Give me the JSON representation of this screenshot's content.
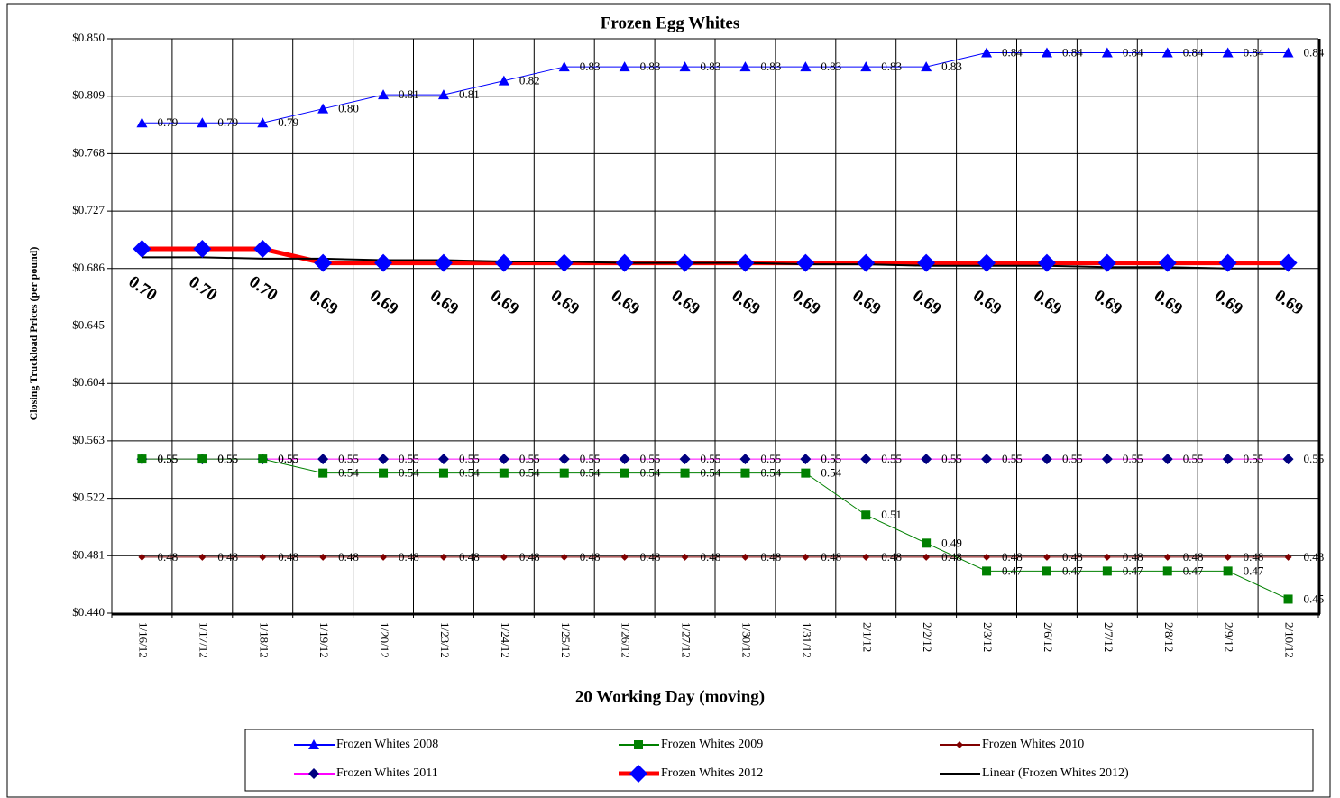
{
  "chart_data": {
    "type": "line",
    "title": "Frozen Egg Whites",
    "x_label": "20 Working Day (moving)",
    "y_label": "Closing Truckload Prices (per pound)",
    "categories": [
      "1/16/12",
      "1/17/12",
      "1/18/12",
      "1/19/12",
      "1/20/12",
      "1/23/12",
      "1/24/12",
      "1/25/12",
      "1/26/12",
      "1/27/12",
      "1/30/12",
      "1/31/12",
      "2/1/12",
      "2/2/12",
      "2/3/12",
      "2/6/12",
      "2/7/12",
      "2/8/12",
      "2/9/12",
      "2/10/12"
    ],
    "ylim": [
      0.44,
      0.85
    ],
    "yticks": [
      {
        "value": 0.44,
        "label": "$0.440"
      },
      {
        "value": 0.481,
        "label": "$0.481"
      },
      {
        "value": 0.522,
        "label": "$0.522"
      },
      {
        "value": 0.563,
        "label": "$0.563"
      },
      {
        "value": 0.604,
        "label": "$0.604"
      },
      {
        "value": 0.645,
        "label": "$0.645"
      },
      {
        "value": 0.686,
        "label": "$0.686"
      },
      {
        "value": 0.727,
        "label": "$0.727"
      },
      {
        "value": 0.768,
        "label": "$0.768"
      },
      {
        "value": 0.809,
        "label": "$0.809"
      },
      {
        "value": 0.85,
        "label": "$0.850"
      }
    ],
    "grid": true,
    "series": [
      {
        "name": "Frozen Whites 2008",
        "color": "#0000ff",
        "marker": "triangle",
        "marker_color": "#0000ff",
        "values": [
          0.79,
          0.79,
          0.79,
          0.8,
          0.81,
          0.81,
          0.82,
          0.83,
          0.83,
          0.83,
          0.83,
          0.83,
          0.83,
          0.83,
          0.84,
          0.84,
          0.84,
          0.84,
          0.84,
          0.84
        ],
        "value_labels": [
          "0.79",
          "0.79",
          "0.79",
          "0.80",
          "0.81",
          "0.81",
          "0.82",
          "0.83",
          "0.83",
          "0.83",
          "0.83",
          "0.83",
          "0.83",
          "0.83",
          "0.84",
          "0.84",
          "0.84",
          "0.84",
          "0.84",
          "0.84"
        ]
      },
      {
        "name": "Frozen Whites 2009",
        "color": "#008000",
        "marker": "square",
        "marker_color": "#008000",
        "values": [
          0.55,
          0.55,
          0.55,
          0.54,
          0.54,
          0.54,
          0.54,
          0.54,
          0.54,
          0.54,
          0.54,
          0.54,
          0.51,
          0.49,
          0.47,
          0.47,
          0.47,
          0.47,
          0.47,
          0.45
        ],
        "value_labels": [
          "0.55",
          "0.55",
          "0.55",
          "0.54",
          "0.54",
          "0.54",
          "0.54",
          "0.54",
          "0.54",
          "0.54",
          "0.54",
          "0.54",
          "0.51",
          "0.49",
          "0.47",
          "0.47",
          "0.47",
          "0.47",
          "0.47",
          "0.45"
        ]
      },
      {
        "name": "Frozen Whites 2010",
        "color": "#800000",
        "marker": "small-diamond",
        "marker_color": "#800000",
        "values": [
          0.48,
          0.48,
          0.48,
          0.48,
          0.48,
          0.48,
          0.48,
          0.48,
          0.48,
          0.48,
          0.48,
          0.48,
          0.48,
          0.48,
          0.48,
          0.48,
          0.48,
          0.48,
          0.48,
          0.48
        ],
        "value_labels": [
          "0.48",
          "0.48",
          "0.48",
          "0.48",
          "0.48",
          "0.48",
          "0.48",
          "0.48",
          "0.48",
          "0.48",
          "0.48",
          "0.48",
          "0.48",
          "0.48",
          "0.48",
          "0.48",
          "0.48",
          "0.48",
          "0.48",
          "0.48"
        ]
      },
      {
        "name": "Frozen Whites 2011",
        "color": "#ff00ff",
        "marker": "diamond",
        "marker_color": "#000080",
        "values": [
          0.55,
          0.55,
          0.55,
          0.55,
          0.55,
          0.55,
          0.55,
          0.55,
          0.55,
          0.55,
          0.55,
          0.55,
          0.55,
          0.55,
          0.55,
          0.55,
          0.55,
          0.55,
          0.55,
          0.55
        ],
        "value_labels": [
          "0.55",
          "0.55",
          "0.55",
          "0.55",
          "0.55",
          "0.55",
          "0.55",
          "0.55",
          "0.55",
          "0.55",
          "0.55",
          "0.55",
          "0.55",
          "0.55",
          "0.55",
          "0.55",
          "0.55",
          "0.55",
          "0.55",
          "0.55"
        ]
      },
      {
        "name": "Frozen Whites 2012",
        "color": "#ff0000",
        "marker": "big-diamond",
        "marker_color": "#0000ff",
        "values": [
          0.7,
          0.7,
          0.7,
          0.69,
          0.69,
          0.69,
          0.69,
          0.69,
          0.69,
          0.69,
          0.69,
          0.69,
          0.69,
          0.69,
          0.69,
          0.69,
          0.69,
          0.69,
          0.69,
          0.69
        ],
        "value_labels": [
          "0.70",
          "0.70",
          "0.70",
          "0.69",
          "0.69",
          "0.69",
          "0.69",
          "0.69",
          "0.69",
          "0.69",
          "0.69",
          "0.69",
          "0.69",
          "0.69",
          "0.69",
          "0.69",
          "0.69",
          "0.69",
          "0.69",
          "0.69"
        ]
      },
      {
        "name": "Linear (Frozen Whites 2012)",
        "color": "#000000",
        "marker": "none",
        "values": [
          0.694,
          0.694,
          0.693,
          0.693,
          0.692,
          0.692,
          0.691,
          0.691,
          0.69,
          0.69,
          0.69,
          0.689,
          0.689,
          0.688,
          0.688,
          0.688,
          0.687,
          0.687,
          0.686,
          0.686
        ]
      }
    ]
  }
}
